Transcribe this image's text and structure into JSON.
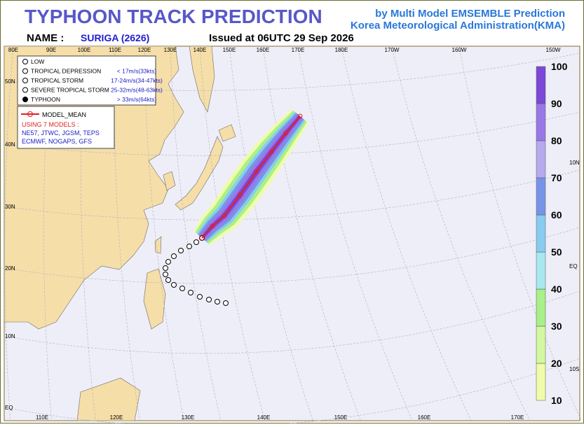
{
  "header": {
    "title": "TYPHOON  TRACK  PREDICTION",
    "source_1": "by Multi Model EMSEMBLE Prediction",
    "source_2": "Korea Meteorological Administration(KMA)",
    "name_label": "NAME :",
    "name_value": "SURIGA (2626)",
    "issued": "Issued at  06UTC 29 Sep 2026"
  },
  "intensity_legend": [
    {
      "label": "LOW"
    },
    {
      "label": "TROPICAL DEPRESSION",
      "speed": "< 17m/s(33kts)"
    },
    {
      "label": "TROPICAL STORM",
      "speed": "17-24m/s(34-47kts)"
    },
    {
      "label": "SEVERE TROPICAL STORM",
      "speed": "25-32m/s(48-63kts)"
    },
    {
      "label": "TYPHOON",
      "speed": "> 33m/s(64kts)"
    }
  ],
  "model_legend": {
    "mean": "MODEL_MEAN",
    "using": "USING 7 MODELS :",
    "models_1": "NE57, JTWC, JGSM, TEPS",
    "models_2": "ECMWF, NOGAPS, GFS"
  },
  "top_lon_labels": [
    "80E",
    "90E",
    "100E",
    "110E",
    "120E",
    "130E",
    "140E",
    "150E",
    "160E",
    "170E",
    "180E",
    "170W",
    "160W",
    "150W"
  ],
  "bottom_lon_labels": [
    "110E",
    "120E",
    "130E",
    "140E",
    "150E",
    "160E",
    "170E"
  ],
  "left_lat_labels": [
    "50N",
    "40N",
    "30N",
    "20N",
    "10N",
    "EQ"
  ],
  "right_lat_labels": [
    "10N",
    "EQ",
    "10S"
  ],
  "colorbar": {
    "ticks": [
      10,
      20,
      30,
      40,
      50,
      60,
      70,
      80,
      90,
      100
    ],
    "colors": [
      "#f0fca8",
      "#d4f8a0",
      "#a8f088",
      "#a8e8f0",
      "#88ccf0",
      "#7894e8",
      "#b8a8f0",
      "#9878e8",
      "#7c48d8"
    ]
  }
}
